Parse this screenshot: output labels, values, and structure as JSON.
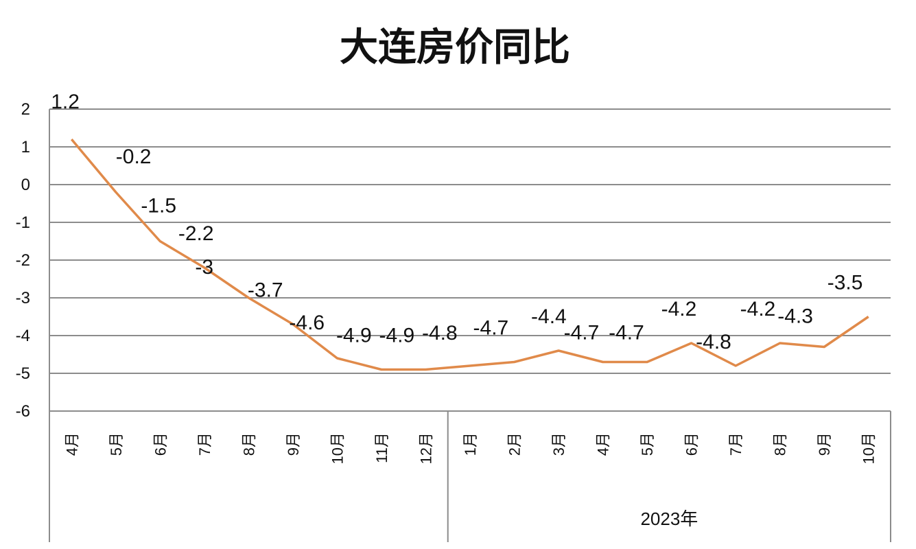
{
  "chart_data": {
    "type": "line",
    "title": "大连房价同比",
    "xlabel": "",
    "ylabel": "",
    "ylim": [
      -6,
      2
    ],
    "yticks": [
      2,
      1,
      0,
      -1,
      -2,
      -3,
      -4,
      -5,
      -6
    ],
    "grid": true,
    "legend": "none",
    "categories": [
      "4月",
      "5月",
      "6月",
      "7月",
      "8月",
      "9月",
      "10月",
      "11月",
      "12月",
      "1月",
      "2月",
      "3月",
      "4月",
      "5月",
      "6月",
      "7月",
      "8月",
      "9月",
      "10月"
    ],
    "category_groups": [
      {
        "label": "",
        "start": 0,
        "end": 8
      },
      {
        "label": "2023年",
        "start": 9,
        "end": 18
      }
    ],
    "series": [
      {
        "name": "大连房价同比",
        "color": "#E08A4A",
        "values": [
          1.2,
          -0.2,
          -1.5,
          -2.2,
          -3,
          -3.7,
          -4.6,
          -4.9,
          -4.9,
          -4.8,
          -4.7,
          -4.4,
          -4.7,
          -4.7,
          -4.2,
          -4.8,
          -4.2,
          -4.3,
          -3.5
        ],
        "data_labels": [
          "1.2",
          "-0.2",
          "-1.5",
          "-2.2",
          "-3",
          "-3.7",
          "-4.6",
          "-4.9",
          "-4.9",
          "-4.8",
          "-4.7",
          "-4.4",
          "-4.7",
          "-4.7",
          "-4.2",
          "-4.8",
          "-4.2",
          "-4.3",
          "-3.5"
        ]
      }
    ]
  },
  "colors": {
    "line": "#E08A4A",
    "grid": "#8c8c8c",
    "text": "#111111"
  }
}
